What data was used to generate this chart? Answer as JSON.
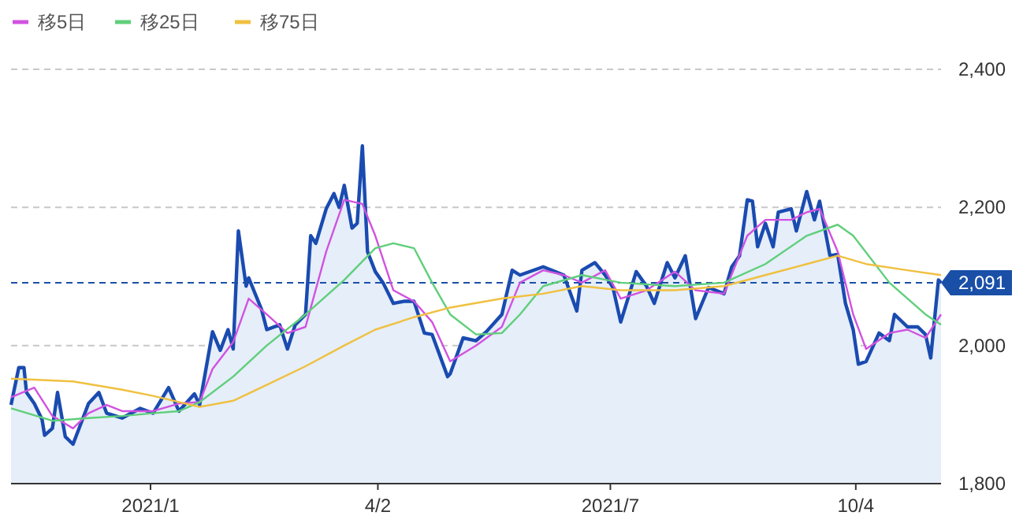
{
  "chart_data": {
    "type": "line",
    "legend": "top left",
    "grid": "y",
    "ylim": [
      1800,
      2400
    ],
    "yticks": [
      {
        "value": 1800,
        "label": "1,800"
      },
      {
        "value": 2000,
        "label": "2,000"
      },
      {
        "value": 2200,
        "label": "2,200"
      },
      {
        "value": 2400,
        "label": "2,400"
      }
    ],
    "xlim": [
      "2020-11-11",
      "2021-11-06"
    ],
    "xticks": [
      {
        "value": "2021-01-04",
        "label": "2021/1"
      },
      {
        "value": "2021-04-02",
        "label": "4/2"
      },
      {
        "value": "2021-07-01",
        "label": "2021/7"
      },
      {
        "value": "2021-10-04",
        "label": "10/4"
      }
    ],
    "ref_lines": [
      {
        "axis": "y",
        "value": 2091,
        "label": "2,091",
        "color": "#1a4fa8",
        "line_style": "dashed"
      }
    ],
    "series": [
      {
        "type": "area",
        "color": "#1a4bb0",
        "x": [
          "2020-11-11",
          "2020-11-14",
          "2020-11-16",
          "2020-11-17",
          "2020-11-20",
          "2020-11-23",
          "2020-11-24",
          "2020-11-27",
          "2020-11-29",
          "2020-12-02",
          "2020-12-05",
          "2020-12-11",
          "2020-12-15",
          "2020-12-18",
          "2020-12-24",
          "2020-12-31",
          "2021-01-05",
          "2021-01-11",
          "2021-01-15",
          "2021-01-21",
          "2021-01-23",
          "2021-01-28",
          "2021-01-31",
          "2021-02-03",
          "2021-02-05",
          "2021-02-07",
          "2021-02-10",
          "2021-02-11",
          "2021-02-16",
          "2021-02-18",
          "2021-02-23",
          "2021-02-26",
          "2021-03-01",
          "2021-03-05",
          "2021-03-07",
          "2021-03-09",
          "2021-03-13",
          "2021-03-16",
          "2021-03-18",
          "2021-03-20",
          "2021-03-23",
          "2021-03-25",
          "2021-03-27",
          "2021-03-29",
          "2021-04-01",
          "2021-04-04",
          "2021-04-08",
          "2021-04-12",
          "2021-04-16",
          "2021-04-20",
          "2021-04-23",
          "2021-04-29",
          "2021-04-30",
          "2021-05-05",
          "2021-05-10",
          "2021-05-14",
          "2021-05-20",
          "2021-05-24",
          "2021-05-27",
          "2021-06-05",
          "2021-06-13",
          "2021-06-18",
          "2021-06-20",
          "2021-06-25",
          "2021-06-29",
          "2021-07-02",
          "2021-07-05",
          "2021-07-11",
          "2021-07-15",
          "2021-07-18",
          "2021-07-23",
          "2021-07-26",
          "2021-07-30",
          "2021-08-03",
          "2021-08-08",
          "2021-08-14",
          "2021-08-17",
          "2021-08-20",
          "2021-08-23",
          "2021-08-25",
          "2021-08-27",
          "2021-08-30",
          "2021-09-02",
          "2021-09-04",
          "2021-09-09",
          "2021-09-11",
          "2021-09-15",
          "2021-09-18",
          "2021-09-20",
          "2021-09-24",
          "2021-09-27",
          "2021-09-30",
          "2021-10-03",
          "2021-10-05",
          "2021-10-08",
          "2021-10-13",
          "2021-10-17",
          "2021-10-19",
          "2021-10-24",
          "2021-10-28",
          "2021-10-31",
          "2021-11-02",
          "2021-11-05",
          "2021-11-06"
        ],
        "values": [
          1914,
          1968,
          1968,
          1932,
          1916,
          1893,
          1870,
          1880,
          1932,
          1868,
          1857,
          1916,
          1932,
          1902,
          1895,
          1909,
          1902,
          1939,
          1905,
          1930,
          1914,
          2020,
          1993,
          2023,
          1995,
          2166,
          2086,
          2098,
          2052,
          2023,
          2030,
          1995,
          2030,
          2045,
          2159,
          2148,
          2198,
          2220,
          2200,
          2232,
          2170,
          2177,
          2289,
          2136,
          2107,
          2091,
          2061,
          2064,
          2064,
          2018,
          2016,
          1955,
          1959,
          2011,
          2007,
          2020,
          2045,
          2109,
          2102,
          2114,
          2102,
          2050,
          2109,
          2120,
          2102,
          2084,
          2034,
          2107,
          2086,
          2061,
          2120,
          2098,
          2130,
          2039,
          2084,
          2075,
          2114,
          2130,
          2211,
          2209,
          2143,
          2177,
          2143,
          2193,
          2198,
          2166,
          2223,
          2182,
          2209,
          2130,
          2132,
          2061,
          2023,
          1973,
          1977,
          2018,
          2007,
          2045,
          2027,
          2027,
          2016,
          1982,
          2095,
          2091
        ]
      },
      {
        "name": "移5日",
        "color": "#d152e0",
        "x": [
          "2020-11-11",
          "2020-11-20",
          "2020-11-27",
          "2020-12-05",
          "2020-12-11",
          "2020-12-18",
          "2020-12-24",
          "2021-01-05",
          "2021-01-15",
          "2021-01-23",
          "2021-01-28",
          "2021-02-05",
          "2021-02-11",
          "2021-02-18",
          "2021-02-26",
          "2021-03-05",
          "2021-03-13",
          "2021-03-20",
          "2021-03-27",
          "2021-04-01",
          "2021-04-08",
          "2021-04-16",
          "2021-04-23",
          "2021-04-30",
          "2021-05-10",
          "2021-05-20",
          "2021-05-27",
          "2021-06-05",
          "2021-06-13",
          "2021-06-20",
          "2021-06-29",
          "2021-07-05",
          "2021-07-15",
          "2021-07-26",
          "2021-08-03",
          "2021-08-14",
          "2021-08-23",
          "2021-08-30",
          "2021-09-09",
          "2021-09-15",
          "2021-09-20",
          "2021-09-27",
          "2021-10-03",
          "2021-10-08",
          "2021-10-17",
          "2021-10-24",
          "2021-10-31",
          "2021-11-06"
        ],
        "values": [
          1925,
          1939,
          1898,
          1880,
          1902,
          1914,
          1905,
          1905,
          1916,
          1918,
          1966,
          2005,
          2068,
          2045,
          2018,
          2027,
          2136,
          2211,
          2205,
          2159,
          2080,
          2064,
          2034,
          1977,
          2000,
          2027,
          2091,
          2109,
          2102,
          2091,
          2109,
          2068,
          2080,
          2107,
          2080,
          2075,
          2159,
          2182,
          2182,
          2193,
          2198,
          2136,
          2045,
          1995,
          2018,
          2023,
          2011,
          2045
        ]
      },
      {
        "name": "移25日",
        "color": "#5fcf7a",
        "x": [
          "2020-11-11",
          "2020-11-27",
          "2020-12-11",
          "2020-12-24",
          "2021-01-05",
          "2021-01-15",
          "2021-01-23",
          "2021-02-05",
          "2021-02-18",
          "2021-03-05",
          "2021-03-20",
          "2021-04-01",
          "2021-04-08",
          "2021-04-16",
          "2021-04-23",
          "2021-04-30",
          "2021-05-10",
          "2021-05-20",
          "2021-05-27",
          "2021-06-05",
          "2021-06-20",
          "2021-07-05",
          "2021-07-26",
          "2021-08-14",
          "2021-08-30",
          "2021-09-15",
          "2021-09-27",
          "2021-10-03",
          "2021-10-17",
          "2021-10-31",
          "2021-11-06"
        ],
        "values": [
          1909,
          1891,
          1895,
          1898,
          1902,
          1905,
          1918,
          1955,
          2000,
          2045,
          2095,
          2141,
          2148,
          2141,
          2091,
          2045,
          2016,
          2018,
          2045,
          2086,
          2102,
          2091,
          2086,
          2091,
          2118,
          2159,
          2175,
          2159,
          2091,
          2045,
          2030
        ]
      },
      {
        "name": "移75日",
        "color": "#f0c040",
        "x": [
          "2020-11-11",
          "2020-12-05",
          "2020-12-24",
          "2021-01-05",
          "2021-01-23",
          "2021-02-05",
          "2021-02-18",
          "2021-03-05",
          "2021-03-20",
          "2021-04-01",
          "2021-04-16",
          "2021-04-30",
          "2021-05-20",
          "2021-06-05",
          "2021-06-20",
          "2021-07-05",
          "2021-07-26",
          "2021-08-14",
          "2021-08-30",
          "2021-09-15",
          "2021-09-27",
          "2021-10-08",
          "2021-10-24",
          "2021-11-06"
        ],
        "values": [
          1952,
          1948,
          1936,
          1927,
          1911,
          1920,
          1943,
          1970,
          2000,
          2023,
          2041,
          2055,
          2068,
          2075,
          2086,
          2080,
          2080,
          2086,
          2102,
          2118,
          2130,
          2118,
          2109,
          2102
        ]
      }
    ]
  }
}
